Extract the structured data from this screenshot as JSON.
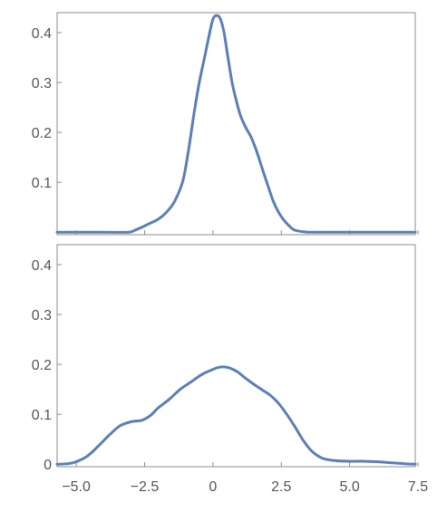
{
  "chart_data": [
    {
      "type": "line",
      "title": "",
      "xlabel": "",
      "ylabel": "",
      "xlim": [
        -5.7,
        7.4
      ],
      "ylim": [
        -0.005,
        0.44
      ],
      "grid": false,
      "yticks": [
        0.1,
        0.2,
        0.3,
        0.4
      ],
      "ytick_labels": [
        "0.1",
        "0.2",
        "0.3",
        "0.4"
      ],
      "xticks": [
        -5.0,
        -2.5,
        0,
        2.5,
        5.0,
        7.5
      ],
      "series": [
        {
          "color": "#5b7fb5",
          "x": [
            -5.7,
            -4.0,
            -3.1,
            -2.9,
            -2.6,
            -2.3,
            -2.0,
            -1.7,
            -1.4,
            -1.1,
            -0.9,
            -0.7,
            -0.5,
            -0.3,
            -0.1,
            0.0,
            0.1,
            0.25,
            0.4,
            0.55,
            0.7,
            0.85,
            1.0,
            1.2,
            1.4,
            1.6,
            1.8,
            2.0,
            2.2,
            2.4,
            2.6,
            2.8,
            3.0,
            3.3,
            3.6,
            4.0,
            5.0,
            6.0,
            7.4
          ],
          "y": [
            0.0,
            0.0,
            0.0,
            0.003,
            0.01,
            0.018,
            0.026,
            0.04,
            0.062,
            0.103,
            0.162,
            0.235,
            0.3,
            0.352,
            0.405,
            0.427,
            0.434,
            0.43,
            0.402,
            0.35,
            0.3,
            0.265,
            0.235,
            0.21,
            0.19,
            0.162,
            0.128,
            0.095,
            0.063,
            0.04,
            0.024,
            0.012,
            0.004,
            0.001,
            0.0,
            0.0,
            0.0,
            0.0,
            0.0
          ]
        }
      ]
    },
    {
      "type": "line",
      "title": "",
      "xlabel": "",
      "ylabel": "",
      "xlim": [
        -5.7,
        7.4
      ],
      "ylim": [
        -0.005,
        0.44
      ],
      "grid": false,
      "yticks": [
        0,
        0.1,
        0.2,
        0.3,
        0.4
      ],
      "ytick_labels": [
        "0",
        "0.1",
        "0.2",
        "0.3",
        "0.4"
      ],
      "xticks": [
        -5.0,
        -2.5,
        0,
        2.5,
        5.0,
        7.5
      ],
      "xtick_labels": [
        "−5.0",
        "−2.5",
        "0",
        "2.5",
        "5.0",
        "7.5"
      ],
      "series": [
        {
          "color": "#5b7fb5",
          "x": [
            -5.7,
            -5.3,
            -5.0,
            -4.6,
            -4.2,
            -3.8,
            -3.4,
            -3.0,
            -2.6,
            -2.3,
            -2.0,
            -1.6,
            -1.2,
            -0.8,
            -0.4,
            0.0,
            0.2,
            0.4,
            0.6,
            0.9,
            1.2,
            1.5,
            1.8,
            2.1,
            2.4,
            2.7,
            3.0,
            3.3,
            3.6,
            4.0,
            4.5,
            5.0,
            5.5,
            6.0,
            6.5,
            7.0,
            7.4
          ],
          "y": [
            0.0,
            0.001,
            0.005,
            0.016,
            0.036,
            0.058,
            0.077,
            0.085,
            0.088,
            0.097,
            0.113,
            0.13,
            0.15,
            0.165,
            0.18,
            0.19,
            0.194,
            0.195,
            0.193,
            0.185,
            0.172,
            0.16,
            0.149,
            0.138,
            0.122,
            0.1,
            0.075,
            0.048,
            0.027,
            0.012,
            0.007,
            0.006,
            0.006,
            0.005,
            0.003,
            0.001,
            0.0
          ]
        }
      ]
    }
  ]
}
